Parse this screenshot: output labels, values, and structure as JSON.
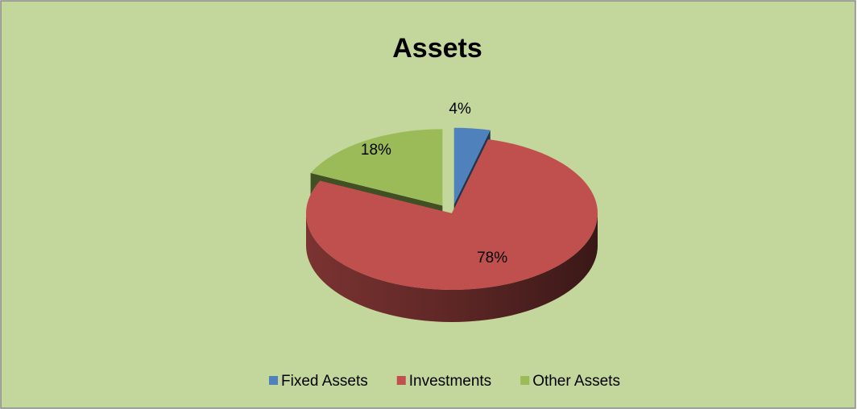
{
  "chart_data": {
    "type": "pie",
    "title": "Assets",
    "categories": [
      "Fixed Assets",
      "Investments",
      "Other Assets"
    ],
    "values": [
      4,
      78,
      18
    ],
    "value_labels": [
      "4%",
      "78%",
      "18%"
    ],
    "colors": [
      "#4f81bd",
      "#c0504d",
      "#9bbb59"
    ],
    "legend": "bottom"
  }
}
